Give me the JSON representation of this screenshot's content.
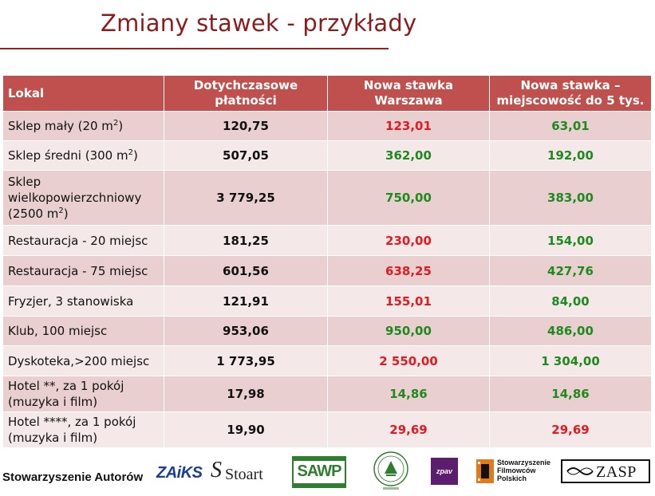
{
  "title": "Zmiany stawek - przykłady",
  "colors": {
    "title": "#8c1c1c",
    "header_bg": "#c0504d",
    "row_odd": "#e9cfcf",
    "row_even": "#f4e8e8",
    "red": "#e11b22",
    "green": "#1e8a1e"
  },
  "table": {
    "headers": {
      "lokal": "Lokal",
      "dotychczasowe_l1": "Dotychczasowe",
      "dotychczasowe_l2": "płatności",
      "warszawa_l1": "Nowa stawka",
      "warszawa_l2": "Warszawa",
      "miejscowosc_l1": "Nowa stawka –",
      "miejscowosc_l2": "miejscowość do 5 tys."
    },
    "rows": [
      {
        "name": "Sklep mały (20 m",
        "sup": "2",
        "suffix": ")",
        "old": "120,75",
        "warszawa": "123,01",
        "warszawa_color": "red",
        "small": "63,01",
        "small_color": "green"
      },
      {
        "name": "Sklep średni (300 m",
        "sup": "2",
        "suffix": ")",
        "old": "507,05",
        "warszawa": "362,00",
        "warszawa_color": "green",
        "small": "192,00",
        "small_color": "green"
      },
      {
        "name_l1": "Sklep",
        "name_l2": "wielkopowierzchniowy",
        "name_l3": "(2500 m",
        "sup": "2",
        "suffix": ")",
        "old": "3 779,25",
        "warszawa": "750,00",
        "warszawa_color": "green",
        "small": "383,00",
        "small_color": "green"
      },
      {
        "name": "Restauracja - 20 miejsc",
        "old": "181,25",
        "warszawa": "230,00",
        "warszawa_color": "red",
        "small": "154,00",
        "small_color": "green"
      },
      {
        "name": "Restauracja - 75 miejsc",
        "old": "601,56",
        "warszawa": "638,25",
        "warszawa_color": "red",
        "small": "427,76",
        "small_color": "green"
      },
      {
        "name": "Fryzjer, 3 stanowiska",
        "old": "121,91",
        "warszawa": "155,01",
        "warszawa_color": "red",
        "small": "84,00",
        "small_color": "green"
      },
      {
        "name": "Klub, 100 miejsc",
        "old": "953,06",
        "warszawa": "950,00",
        "warszawa_color": "green",
        "small": "486,00",
        "small_color": "green"
      },
      {
        "name": "Dyskoteka,>200 miejsc",
        "old": "1 773,95",
        "warszawa": "2 550,00",
        "warszawa_color": "red",
        "small": "1 304,00",
        "small_color": "green"
      },
      {
        "name_l1": "Hotel **, za 1 pokój",
        "name_l2": "(muzyka i film)",
        "old": "17,98",
        "warszawa": "14,86",
        "warszawa_color": "green",
        "small": "14,86",
        "small_color": "green"
      },
      {
        "name_l1": "Hotel ****, za 1 pokój",
        "name_l2": "(muzyka i film)",
        "old": "19,90",
        "warszawa": "29,69",
        "warszawa_color": "red",
        "small": "29,69",
        "small_color": "red"
      }
    ]
  },
  "logos": {
    "stowarzyszenie_autorow": "Stowarzyszenie Autorów",
    "zaiks": "ZAiKS",
    "stoart": "Stoart",
    "sawp": "SAWP",
    "zpav": "zpav",
    "sfp_l1": "Stowarzyszenie",
    "sfp_l2": "Filmowców",
    "sfp_l3": "Polskich",
    "zasp": "ZASP",
    "icons": [
      "stoart-logo-icon",
      "sawp-logo-icon",
      "emblem-circle-icon",
      "zpav-logo-icon",
      "sfp-logo-icon",
      "zasp-logo-icon"
    ]
  }
}
